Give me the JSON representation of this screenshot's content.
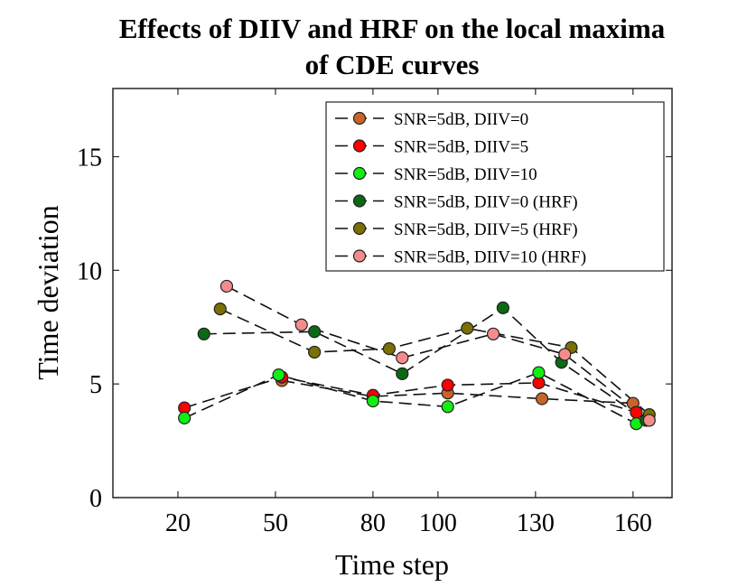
{
  "chart_data": {
    "type": "line",
    "title_lines": [
      "Effects of DIIV and HRF on the local maxima",
      "of CDE curves"
    ],
    "xlabel": "Time step",
    "ylabel": "Time deviation",
    "xlim": [
      0,
      172
    ],
    "ylim": [
      0,
      18
    ],
    "xticks": [
      20,
      50,
      80,
      100,
      130,
      160
    ],
    "yticks": [
      0,
      5,
      10,
      15
    ],
    "grid": false,
    "legend_position": "top-right",
    "series": [
      {
        "name": "SNR=5dB, DIIV=0",
        "color": "#c8642a",
        "points": [
          [
            52,
            5.15
          ],
          [
            80,
            4.45
          ],
          [
            103,
            4.6
          ],
          [
            132,
            4.35
          ],
          [
            160,
            4.15
          ]
        ]
      },
      {
        "name": "SNR=5dB, DIIV=5",
        "color": "#ff0000",
        "points": [
          [
            22,
            3.95
          ],
          [
            52,
            5.3
          ],
          [
            80,
            4.5
          ],
          [
            103,
            4.95
          ],
          [
            131,
            5.05
          ],
          [
            161,
            3.75
          ]
        ]
      },
      {
        "name": "SNR=5dB, DIIV=10",
        "color": "#11ee11",
        "points": [
          [
            22,
            3.5
          ],
          [
            51,
            5.4
          ],
          [
            80,
            4.25
          ],
          [
            103,
            4.0
          ],
          [
            131,
            5.5
          ],
          [
            161,
            3.25
          ]
        ]
      },
      {
        "name": "SNR=5dB, DIIV=0 (HRF)",
        "color": "#0a6a14",
        "points": [
          [
            28,
            7.2
          ],
          [
            62,
            7.3
          ],
          [
            89,
            5.45
          ],
          [
            120,
            8.35
          ],
          [
            138,
            5.95
          ],
          [
            164,
            3.4
          ]
        ]
      },
      {
        "name": "SNR=5dB, DIIV=5 (HRF)",
        "color": "#7a7005",
        "points": [
          [
            33,
            8.3
          ],
          [
            62,
            6.4
          ],
          [
            85,
            6.55
          ],
          [
            109,
            7.45
          ],
          [
            141,
            6.6
          ],
          [
            165,
            3.65
          ]
        ]
      },
      {
        "name": "SNR=5dB, DIIV=10 (HRF)",
        "color": "#f58c8c",
        "points": [
          [
            35,
            9.3
          ],
          [
            58,
            7.6
          ],
          [
            89,
            6.15
          ],
          [
            117,
            7.2
          ],
          [
            139,
            6.3
          ],
          [
            165,
            3.4
          ]
        ]
      }
    ]
  }
}
